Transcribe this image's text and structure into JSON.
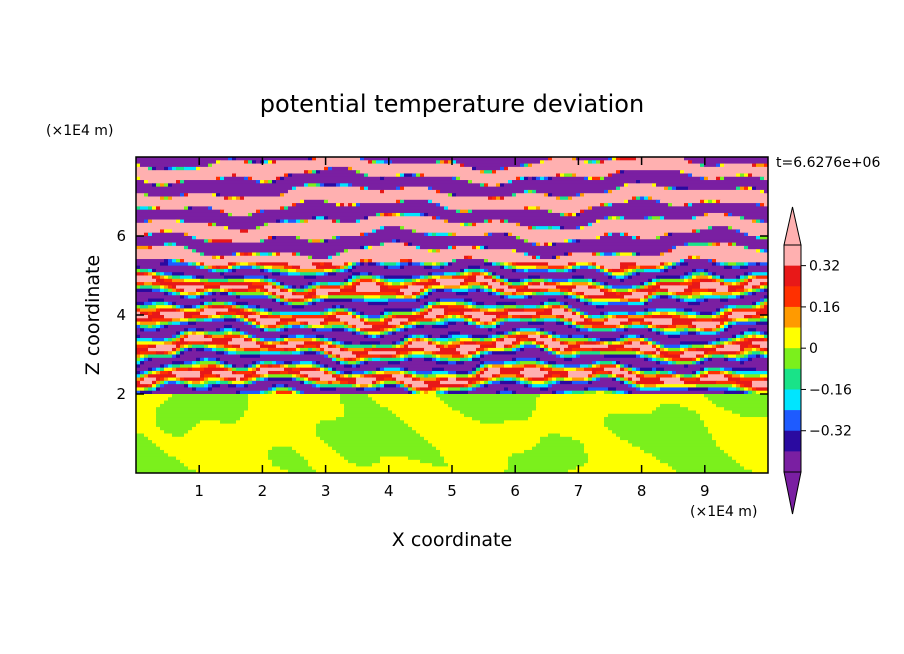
{
  "chart_data": {
    "type": "heatmap",
    "title": "potential temperature deviation",
    "xlabel": "X coordinate",
    "ylabel": "Z coordinate",
    "x_unit": "(×1E4 m)",
    "y_unit": "(×1E4 m)",
    "time_label": "t=6.6276e+06",
    "xlim": [
      0,
      10
    ],
    "ylim": [
      0,
      8
    ],
    "x_ticks": [
      1,
      2,
      3,
      4,
      5,
      6,
      7,
      8,
      9
    ],
    "y_ticks": [
      2,
      4,
      6
    ],
    "colorbar": {
      "levels": [
        -0.4,
        -0.32,
        -0.24,
        -0.16,
        -0.08,
        0,
        0.08,
        0.16,
        0.24,
        0.32,
        0.4
      ],
      "tick_labels": [
        "0.32",
        "0.16",
        "0",
        "−0.16",
        "−0.32"
      ],
      "tick_values": [
        0.32,
        0.16,
        0,
        -0.16,
        -0.32
      ],
      "colors": [
        "#7a1fa2",
        "#2a0aa0",
        "#1e5bff",
        "#00e5ff",
        "#19e388",
        "#7bf01c",
        "#ffff00",
        "#ff9a00",
        "#ff3000",
        "#e81818",
        "#ffb0b0"
      ],
      "under_color": "#7a1fa2",
      "over_color": "#ffb0b0"
    },
    "field_summary": [
      {
        "z_range": [
          0,
          2
        ],
        "description_levels": [
          0,
          0.08
        ]
      },
      {
        "z_range": [
          2,
          5.3
        ],
        "description_levels": [
          -0.4,
          0.4
        ]
      },
      {
        "z_range": [
          5.3,
          8
        ],
        "description_levels": [
          -0.4,
          0.4
        ]
      }
    ]
  }
}
